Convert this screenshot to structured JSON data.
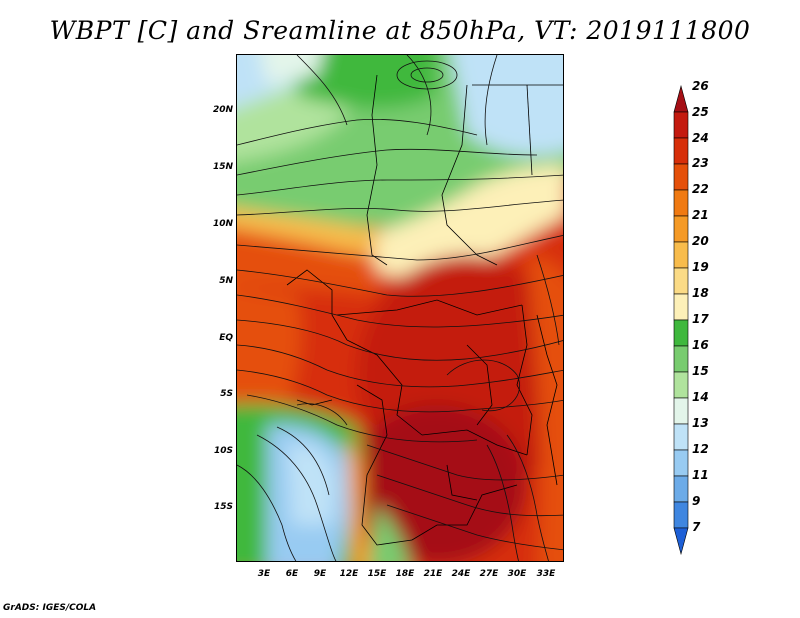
{
  "title": "WBPT [C] and Sreamline at 850hPa, VT: 2019111800",
  "credit": "GrADS: IGES/COLA",
  "lat_labels": [
    "20N",
    "15N",
    "10N",
    "5N",
    "EQ",
    "5S",
    "10S",
    "15S"
  ],
  "lon_labels": [
    "3E",
    "6E",
    "9E",
    "12E",
    "15E",
    "18E",
    "21E",
    "24E",
    "27E",
    "30E",
    "33E"
  ],
  "colorbar": {
    "labels": [
      "26",
      "25",
      "24",
      "23",
      "22",
      "21",
      "20",
      "19",
      "18",
      "17",
      "16",
      "15",
      "14",
      "13",
      "12",
      "11",
      "9",
      "7"
    ],
    "colors": [
      "#a50f15",
      "#c41a0f",
      "#d72f0a",
      "#e5500a",
      "#f07a12",
      "#f59a26",
      "#f8bc4c",
      "#fbdb86",
      "#fdf0b8",
      "#3fb83d",
      "#78cc6f",
      "#b0e39d",
      "#e3f5ea",
      "#bfe2f7",
      "#98cbf2",
      "#6cabe8",
      "#3f86e0",
      "#1d5fd6"
    ]
  },
  "colors": {
    "frame": "#000000",
    "background": "#ffffff"
  }
}
